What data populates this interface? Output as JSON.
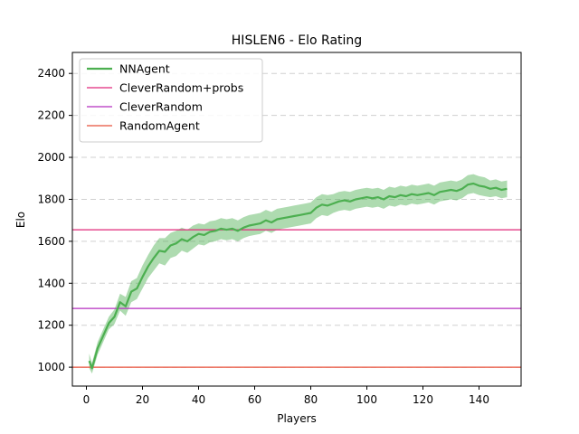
{
  "chart_data": {
    "type": "line",
    "title": "HISLEN6 - Elo Rating",
    "xlabel": "Players",
    "ylabel": "Elo",
    "xlim": [
      -5,
      155
    ],
    "ylim": [
      910,
      2500
    ],
    "x_ticks": [
      0,
      20,
      40,
      60,
      80,
      100,
      120,
      140
    ],
    "y_ticks": [
      1000,
      1200,
      1400,
      1600,
      1800,
      2000,
      2200,
      2400
    ],
    "grid": "horizontal-dashed",
    "legend_position": "upper-left",
    "series": [
      {
        "name": "NNAgent",
        "kind": "line-with-band",
        "color": "#4caf50",
        "band_color": "#4caf50",
        "anchors": [
          [
            1,
            1030,
            35
          ],
          [
            2,
            995,
            25
          ],
          [
            4,
            1090,
            30
          ],
          [
            6,
            1150,
            30
          ],
          [
            8,
            1210,
            30
          ],
          [
            10,
            1240,
            35
          ],
          [
            12,
            1310,
            40
          ],
          [
            14,
            1290,
            45
          ],
          [
            16,
            1360,
            50
          ],
          [
            18,
            1375,
            50
          ],
          [
            20,
            1430,
            55
          ],
          [
            22,
            1480,
            55
          ],
          [
            24,
            1520,
            60
          ],
          [
            26,
            1555,
            60
          ],
          [
            28,
            1550,
            65
          ],
          [
            30,
            1580,
            60
          ],
          [
            32,
            1590,
            60
          ],
          [
            34,
            1610,
            55
          ],
          [
            36,
            1600,
            55
          ],
          [
            38,
            1620,
            55
          ],
          [
            40,
            1635,
            50
          ],
          [
            42,
            1630,
            50
          ],
          [
            44,
            1645,
            50
          ],
          [
            46,
            1650,
            50
          ],
          [
            48,
            1660,
            50
          ],
          [
            50,
            1655,
            50
          ],
          [
            52,
            1660,
            50
          ],
          [
            54,
            1650,
            50
          ],
          [
            56,
            1665,
            50
          ],
          [
            58,
            1675,
            50
          ],
          [
            60,
            1680,
            50
          ],
          [
            62,
            1685,
            50
          ],
          [
            64,
            1700,
            50
          ],
          [
            66,
            1690,
            50
          ],
          [
            68,
            1705,
            50
          ],
          [
            70,
            1710,
            50
          ],
          [
            72,
            1715,
            50
          ],
          [
            74,
            1720,
            50
          ],
          [
            76,
            1725,
            50
          ],
          [
            78,
            1730,
            50
          ],
          [
            80,
            1735,
            50
          ],
          [
            82,
            1760,
            50
          ],
          [
            84,
            1775,
            50
          ],
          [
            86,
            1770,
            50
          ],
          [
            88,
            1780,
            45
          ],
          [
            90,
            1790,
            45
          ],
          [
            92,
            1795,
            45
          ],
          [
            94,
            1790,
            45
          ],
          [
            96,
            1800,
            45
          ],
          [
            98,
            1805,
            45
          ],
          [
            100,
            1810,
            45
          ],
          [
            102,
            1805,
            45
          ],
          [
            104,
            1810,
            45
          ],
          [
            106,
            1800,
            45
          ],
          [
            108,
            1815,
            45
          ],
          [
            110,
            1810,
            45
          ],
          [
            112,
            1820,
            45
          ],
          [
            114,
            1815,
            45
          ],
          [
            116,
            1825,
            45
          ],
          [
            118,
            1820,
            45
          ],
          [
            120,
            1825,
            45
          ],
          [
            122,
            1830,
            45
          ],
          [
            124,
            1820,
            45
          ],
          [
            126,
            1835,
            45
          ],
          [
            128,
            1840,
            45
          ],
          [
            130,
            1845,
            45
          ],
          [
            132,
            1840,
            45
          ],
          [
            134,
            1850,
            45
          ],
          [
            136,
            1870,
            45
          ],
          [
            138,
            1875,
            45
          ],
          [
            140,
            1865,
            45
          ],
          [
            142,
            1860,
            45
          ],
          [
            144,
            1850,
            40
          ],
          [
            146,
            1855,
            40
          ],
          [
            148,
            1845,
            40
          ],
          [
            150,
            1850,
            40
          ]
        ]
      },
      {
        "name": "CleverRandom+probs",
        "kind": "hline",
        "color": "#e0287a",
        "y": 1655
      },
      {
        "name": "CleverRandom",
        "kind": "hline",
        "color": "#b52fbf",
        "y": 1280
      },
      {
        "name": "RandomAgent",
        "kind": "hline",
        "color": "#e8503a",
        "y": 1000
      }
    ]
  }
}
